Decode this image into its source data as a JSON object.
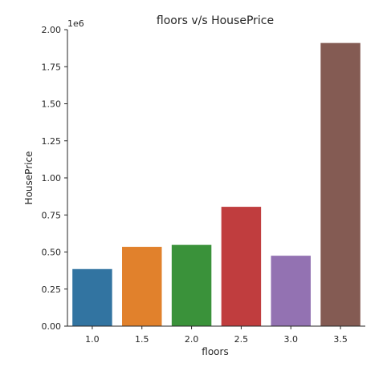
{
  "chart_data": {
    "type": "bar",
    "title": "floors v/s HousePrice",
    "xlabel": "floors",
    "ylabel": "HousePrice",
    "y_offset_label": "1e6",
    "categories": [
      "1.0",
      "1.5",
      "2.0",
      "2.5",
      "3.0",
      "3.5"
    ],
    "values": [
      385000,
      535000,
      548000,
      805000,
      475000,
      1910000
    ],
    "colors": [
      "#3274a1",
      "#e1812c",
      "#3a923a",
      "#c03d3e",
      "#9372b2",
      "#845b53"
    ],
    "ylim": [
      0,
      2000000
    ],
    "yticks": [
      "0.00",
      "0.25",
      "0.50",
      "0.75",
      "1.00",
      "1.25",
      "1.50",
      "1.75",
      "2.00"
    ],
    "grid": false,
    "legend": false
  }
}
